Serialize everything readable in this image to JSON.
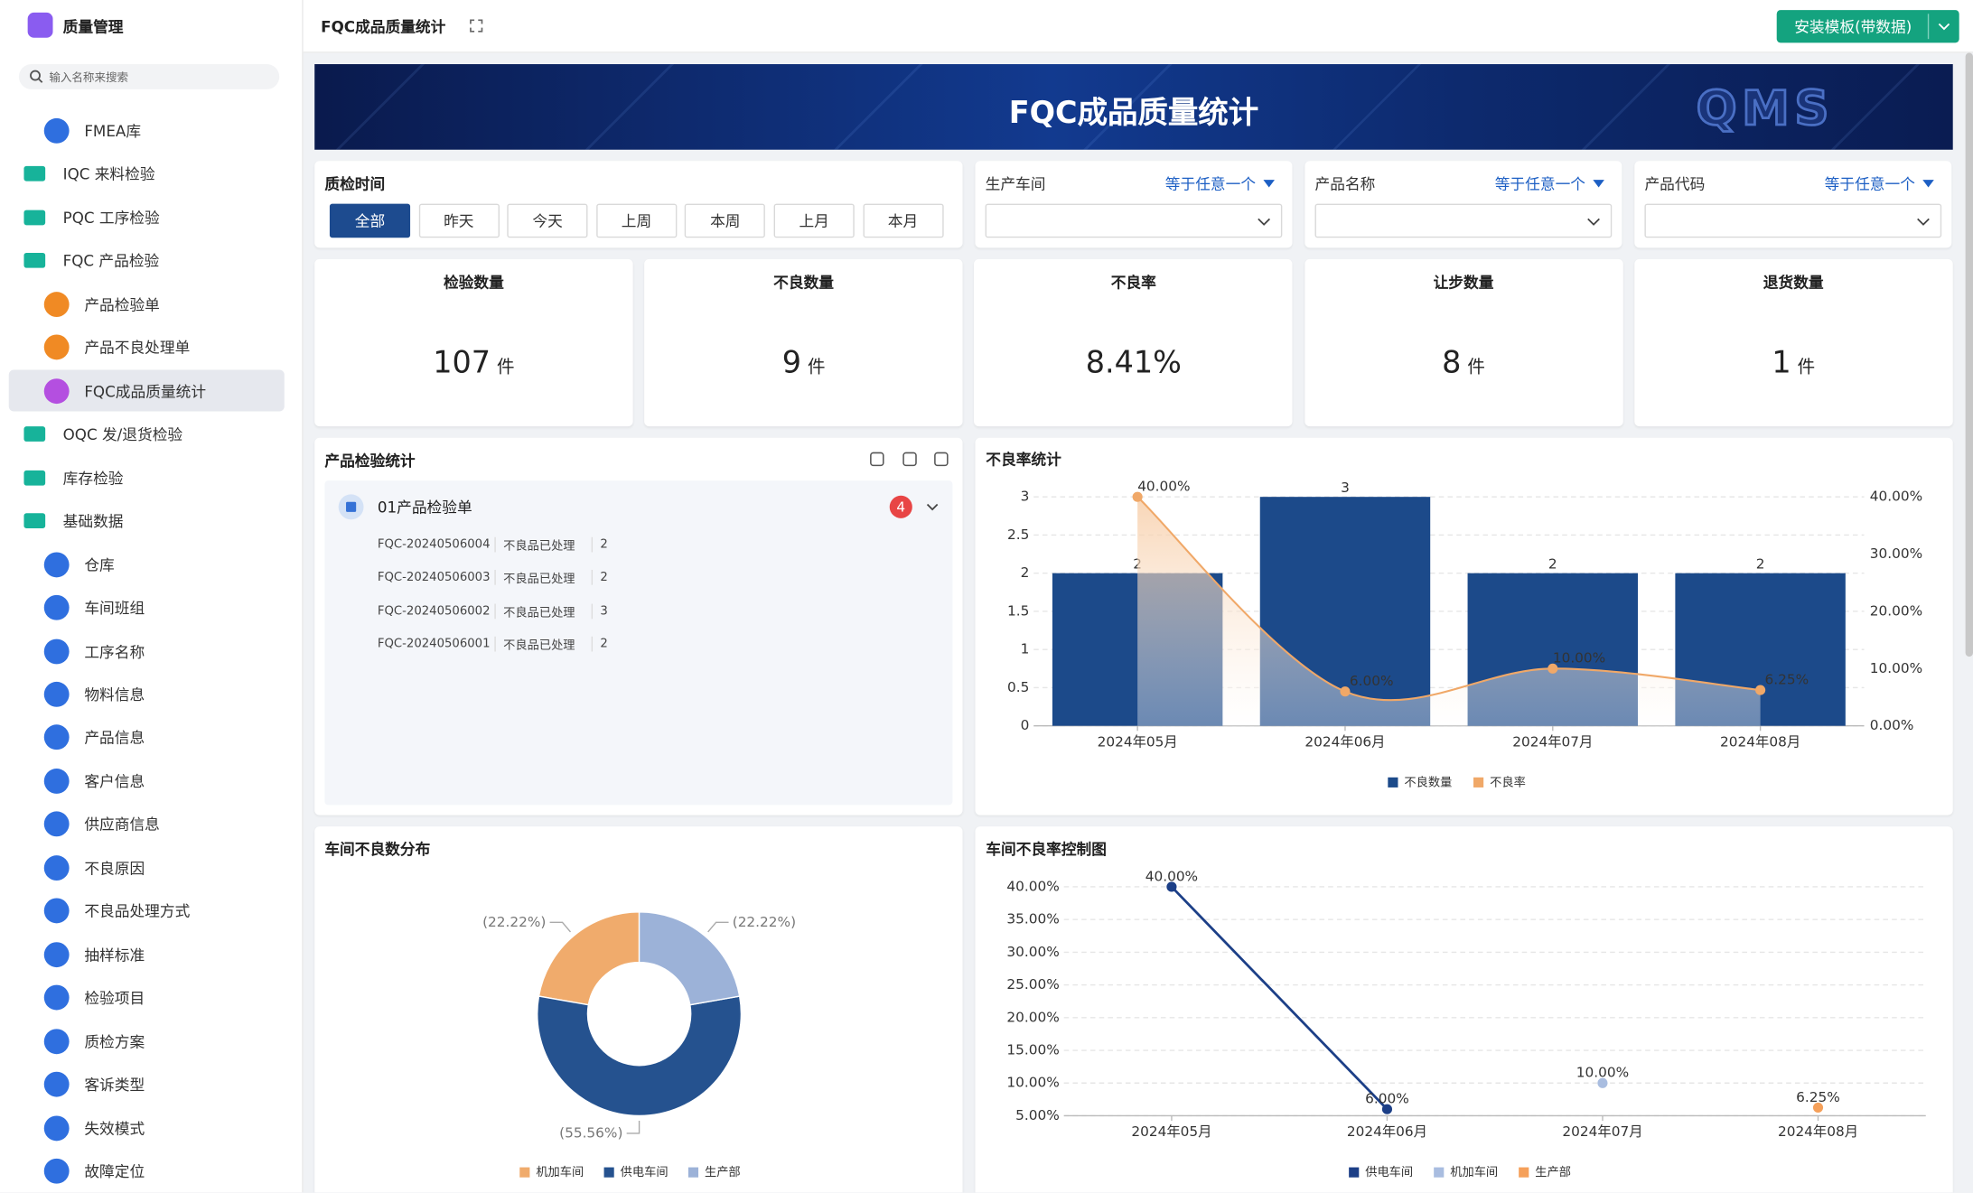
{
  "sidebar": {
    "title": "质量管理",
    "search_placeholder": "输入名称来搜索",
    "items": [
      {
        "label": "FMEA库",
        "level": 1,
        "icon_color": "#2f6fdf"
      },
      {
        "label": "IQC 来料检验",
        "level": 0,
        "icon_color": "#17b39a"
      },
      {
        "label": "PQC 工序检验",
        "level": 0,
        "icon_color": "#17b39a"
      },
      {
        "label": "FQC 产品检验",
        "level": 0,
        "icon_color": "#17b39a"
      },
      {
        "label": "产品检验单",
        "level": 1,
        "icon_color": "#f08a24"
      },
      {
        "label": "产品不良处理单",
        "level": 1,
        "icon_color": "#f08a24"
      },
      {
        "label": "FQC成品质量统计",
        "level": 1,
        "icon_color": "#b44fe0",
        "selected": true
      },
      {
        "label": "OQC 发/退货检验",
        "level": 0,
        "icon_color": "#17b39a"
      },
      {
        "label": "库存检验",
        "level": 0,
        "icon_color": "#17b39a"
      },
      {
        "label": "基础数据",
        "level": 0,
        "icon_color": "#17b39a"
      },
      {
        "label": "仓库",
        "level": 1,
        "icon_color": "#2f6fdf"
      },
      {
        "label": "车间班组",
        "level": 1,
        "icon_color": "#2f6fdf"
      },
      {
        "label": "工序名称",
        "level": 1,
        "icon_color": "#2f6fdf"
      },
      {
        "label": "物料信息",
        "level": 1,
        "icon_color": "#2f6fdf"
      },
      {
        "label": "产品信息",
        "level": 1,
        "icon_color": "#2f6fdf"
      },
      {
        "label": "客户信息",
        "level": 1,
        "icon_color": "#2f6fdf"
      },
      {
        "label": "供应商信息",
        "level": 1,
        "icon_color": "#2f6fdf"
      },
      {
        "label": "不良原因",
        "level": 1,
        "icon_color": "#2f6fdf"
      },
      {
        "label": "不良品处理方式",
        "level": 1,
        "icon_color": "#2f6fdf"
      },
      {
        "label": "抽样标准",
        "level": 1,
        "icon_color": "#2f6fdf"
      },
      {
        "label": "检验项目",
        "level": 1,
        "icon_color": "#2f6fdf"
      },
      {
        "label": "质检方案",
        "level": 1,
        "icon_color": "#2f6fdf"
      },
      {
        "label": "客诉类型",
        "level": 1,
        "icon_color": "#2f6fdf"
      },
      {
        "label": "失效模式",
        "level": 1,
        "icon_color": "#2f6fdf"
      },
      {
        "label": "故障定位",
        "level": 1,
        "icon_color": "#2f6fdf"
      }
    ]
  },
  "header": {
    "title": "FQC成品质量统计",
    "button": "安装模板(带数据)"
  },
  "banner": {
    "title": "FQC成品质量统计",
    "logo": "QMS"
  },
  "filters": {
    "time": {
      "label": "质检时间",
      "options": [
        "全部",
        "昨天",
        "今天",
        "上周",
        "本周",
        "上月",
        "本月"
      ],
      "selected": 0
    },
    "fields": [
      {
        "label": "生产车间",
        "operator": "等于任意一个"
      },
      {
        "label": "产品名称",
        "operator": "等于任意一个"
      },
      {
        "label": "产品代码",
        "operator": "等于任意一个"
      }
    ]
  },
  "kpis": [
    {
      "label": "检验数量",
      "value": "107",
      "unit": "件"
    },
    {
      "label": "不良数量",
      "value": "9",
      "unit": "件"
    },
    {
      "label": "不良率",
      "value": "8.41%"
    },
    {
      "label": "让步数量",
      "value": "8",
      "unit": "件"
    },
    {
      "label": "退货数量",
      "value": "1",
      "unit": "件"
    }
  ],
  "inspection_list": {
    "title": "产品检验统计",
    "group": "01产品检验单",
    "badge": 4,
    "rows": [
      [
        "FQC-20240506004",
        "不良品已处理",
        2
      ],
      [
        "FQC-20240506003",
        "不良品已处理",
        2
      ],
      [
        "FQC-20240506002",
        "不良品已处理",
        3
      ],
      [
        "FQC-20240506001",
        "不良品已处理",
        2
      ]
    ]
  },
  "chart_data": [
    {
      "type": "bar",
      "title": "不良率统计",
      "categories": [
        "2024年05月",
        "2024年06月",
        "2024年07月",
        "2024年08月"
      ],
      "series": [
        {
          "name": "不良数量",
          "type": "bar",
          "color": "#1c4a8a",
          "values": [
            2,
            3,
            2,
            2
          ]
        },
        {
          "name": "不良率",
          "type": "line",
          "axis": "y2",
          "smooth": true,
          "area": true,
          "color": "#f0a868",
          "values": [
            40,
            6,
            10,
            6.25
          ],
          "value_labels": [
            "40.00%",
            "6.00%",
            "10.00%",
            "6.25%"
          ]
        }
      ],
      "ylim": [
        0,
        3
      ],
      "yticks": [
        0,
        0.5,
        1,
        1.5,
        2,
        2.5,
        3
      ],
      "y2lim": [
        0,
        40
      ],
      "y2ticks": [
        {
          "value": 0,
          "label": "0.00%"
        },
        {
          "value": 10,
          "label": "10.00%"
        },
        {
          "value": 20,
          "label": "20.00%"
        },
        {
          "value": 30,
          "label": "30.00%"
        },
        {
          "value": 40,
          "label": "40.00%"
        }
      ],
      "grid": true
    },
    {
      "type": "pie",
      "title": "车间不良数分布",
      "donut": true,
      "clockwise": false,
      "categories": [
        "机加车间",
        "供电车间",
        "生产部"
      ],
      "values": [
        22.22,
        55.56,
        22.22
      ],
      "value_labels": [
        "(22.22%)",
        "(55.56%)",
        "(22.22%)"
      ],
      "colors": [
        "#f0ab6c",
        "#25528f",
        "#9cb2d8"
      ]
    },
    {
      "type": "line",
      "title": "车间不良率控制图",
      "categories": [
        "2024年05月",
        "2024年06月",
        "2024年07月",
        "2024年08月"
      ],
      "series": [
        {
          "name": "供电车间",
          "color": "#1c3f87",
          "values": [
            40,
            6,
            null,
            null
          ],
          "value_labels": [
            "40.00%",
            "6.00%",
            null,
            null
          ]
        },
        {
          "name": "机加车间",
          "color": "#a9bde0",
          "values": [
            null,
            null,
            10,
            null
          ],
          "value_labels": [
            null,
            null,
            "10.00%",
            null
          ]
        },
        {
          "name": "生产部",
          "color": "#f5a05a",
          "values": [
            null,
            null,
            null,
            6.25
          ],
          "value_labels": [
            null,
            null,
            null,
            "6.25%"
          ]
        }
      ],
      "ylim": [
        5,
        40
      ],
      "yticks": [
        {
          "value": 5,
          "label": "5.00%"
        },
        {
          "value": 10,
          "label": "10.00%"
        },
        {
          "value": 15,
          "label": "15.00%"
        },
        {
          "value": 20,
          "label": "20.00%"
        },
        {
          "value": 25,
          "label": "25.00%"
        },
        {
          "value": 30,
          "label": "30.00%"
        },
        {
          "value": 35,
          "label": "35.00%"
        },
        {
          "value": 40,
          "label": "40.00%"
        }
      ],
      "grid": true
    }
  ]
}
